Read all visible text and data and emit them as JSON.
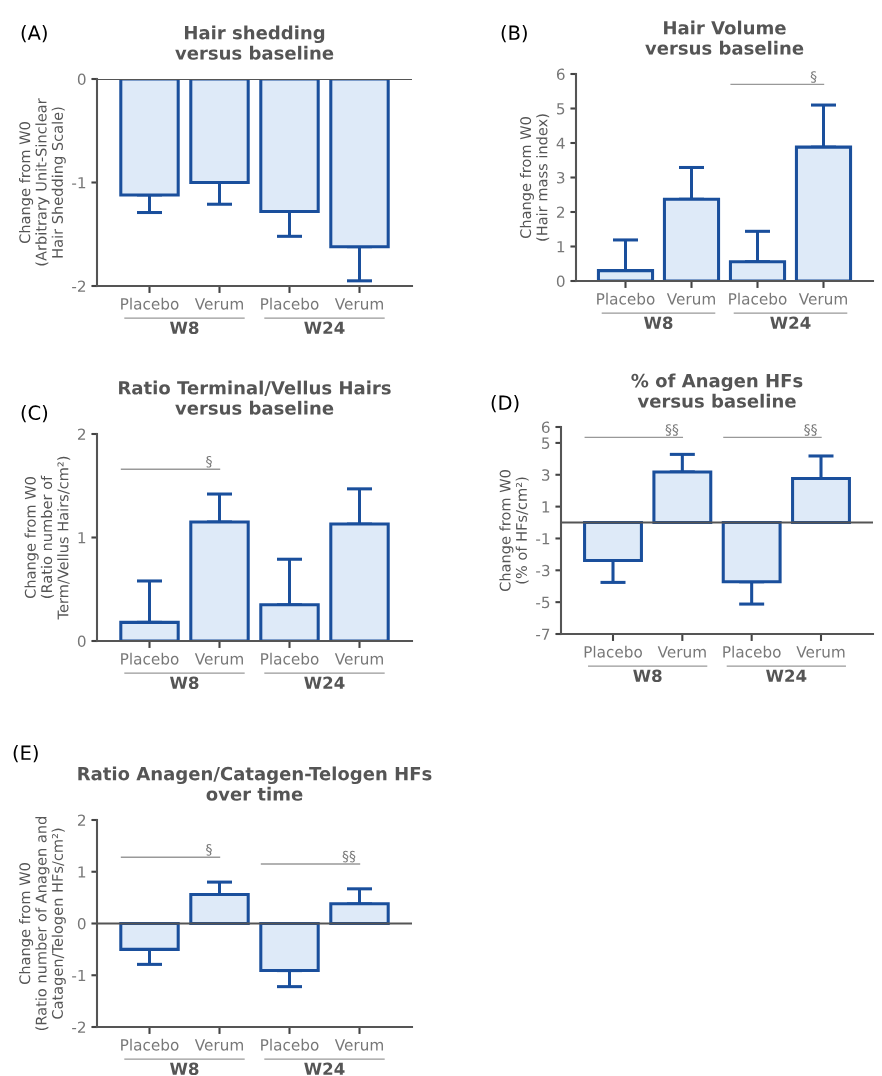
{
  "chart_data": [
    {
      "type": "bar",
      "title": "Hair shedding\nversus baseline",
      "ylabel": "Change from W0\n(Arbitrary Unit-Sinclear\nHair Shedding Scale)",
      "categories": [
        "Placebo",
        "Verum",
        "Placebo",
        "Verum"
      ],
      "color": "#deeaf8",
      "values": [
        -1.12,
        -1.0,
        -1.28,
        -1.62
      ],
      "errors": [
        [
          -1.29,
          -1.12
        ],
        [
          -1.21,
          -1.0
        ],
        [
          -1.52,
          -1.28
        ],
        [
          -1.95,
          -1.62
        ]
      ],
      "ylim": [
        -2,
        0
      ],
      "yticks": [
        -2,
        -1,
        0
      ],
      "grid": false,
      "legend": false,
      "ref_lines": [
        {
          "axis": "y",
          "value": 0,
          "color": "#555555"
        }
      ],
      "annotations": [
        "(A)",
        "W8",
        "W24"
      ]
    },
    {
      "type": "bar",
      "title": "Hair Volume\nversus baseline",
      "ylabel": "Change from W0\n(Hair mass index)",
      "categories": [
        "Placebo",
        "Verum",
        "Placebo",
        "Verum"
      ],
      "color": "#deeaf8",
      "values": [
        0.3,
        2.37,
        0.56,
        3.88
      ],
      "errors": [
        [
          0.3,
          1.19
        ],
        [
          2.37,
          3.29
        ],
        [
          0.56,
          1.44
        ],
        [
          3.88,
          5.1
        ]
      ],
      "ylim": [
        0,
        6
      ],
      "yticks": [
        0,
        1,
        2,
        3,
        4,
        5,
        6
      ],
      "grid": false,
      "legend": false,
      "annotations": [
        "(B)",
        "W8",
        "W24",
        {
          "text": "§"
        }
      ]
    },
    {
      "type": "bar",
      "title": "Ratio Terminal/Vellus Hairs\nversus baseline",
      "ylabel": "Change from W0\n(Ratio number of\nTerm/Vellus Hairs/cm²)",
      "categories": [
        "Placebo",
        "Verum",
        "Placebo",
        "Verum"
      ],
      "color": "#deeaf8",
      "values": [
        0.18,
        1.15,
        0.35,
        1.13
      ],
      "errors": [
        [
          0.18,
          0.58
        ],
        [
          1.15,
          1.42
        ],
        [
          0.35,
          0.79
        ],
        [
          1.13,
          1.47
        ]
      ],
      "ylim": [
        0,
        2
      ],
      "yticks": [
        0,
        1,
        2
      ],
      "grid": false,
      "legend": false,
      "annotations": [
        "(C)",
        "W8",
        {
          "text": "§"
        },
        "W24"
      ]
    },
    {
      "type": "bar",
      "title": "% of Anagen HFs\nversus baseline",
      "ylabel": "Change from W0\n(% of HFs/cm²)",
      "categories": [
        "Placebo",
        "Verum",
        "Placebo",
        "Verum"
      ],
      "color": "#deeaf8",
      "values": [
        -2.38,
        3.18,
        -3.72,
        2.76
      ],
      "errors": [
        [
          -3.76,
          -2.38
        ],
        [
          3.18,
          4.28
        ],
        [
          -5.12,
          -3.72
        ],
        [
          2.76,
          4.18
        ]
      ],
      "ylim": [
        -7,
        6
      ],
      "yticks": [
        -7,
        -5,
        -3,
        -1,
        1,
        3,
        5,
        6
      ],
      "grid": false,
      "legend": false,
      "ref_lines": [
        {
          "axis": "y",
          "value": 0,
          "color": "#555555"
        }
      ],
      "annotations": [
        "(D)",
        "W8",
        {
          "text": "§§"
        },
        "W24",
        {
          "text": "§§"
        }
      ]
    },
    {
      "type": "bar",
      "title": "Ratio Anagen/Catagen-Telogen HFs\nover time",
      "ylabel": "Change from W0\n(Ratio number of Anagen and\nCatagen/Telogen HFs/cm²)",
      "categories": [
        "Placebo",
        "Verum",
        "Placebo",
        "Verum"
      ],
      "color": "#deeaf8",
      "values": [
        -0.5,
        0.56,
        -0.91,
        0.38
      ],
      "errors": [
        [
          -0.79,
          -0.5
        ],
        [
          0.56,
          0.8
        ],
        [
          -1.22,
          -0.91
        ],
        [
          0.38,
          0.67
        ]
      ],
      "ylim": [
        -2,
        2
      ],
      "yticks": [
        -2,
        -1,
        0,
        1,
        2
      ],
      "grid": false,
      "legend": false,
      "ref_lines": [
        {
          "axis": "y",
          "value": 0,
          "color": "#555555"
        }
      ],
      "annotations": [
        "(E)",
        "W8",
        {
          "text": "§"
        },
        "W24",
        {
          "text": "§§"
        }
      ]
    }
  ]
}
